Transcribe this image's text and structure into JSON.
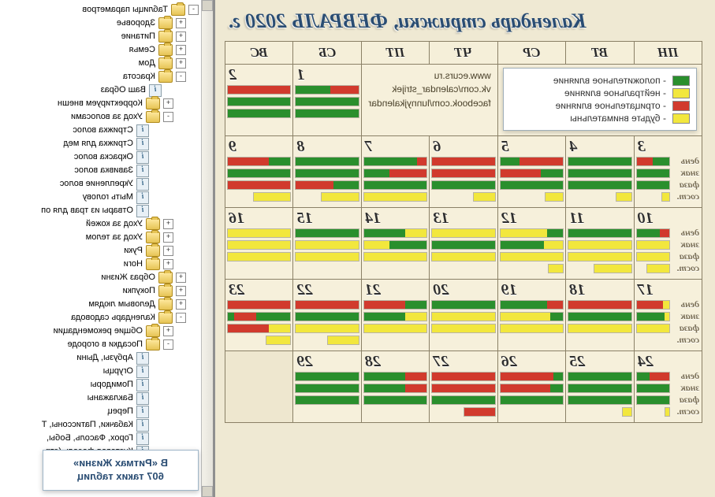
{
  "title": "Календарь стрижки, ФЕВРАЛЬ 2020 г.",
  "sources": [
    "www.ecurs.ru",
    "vk.com/calendar_strijek",
    "facebook.com/lunnyjkalendar"
  ],
  "legend": [
    {
      "color": "#2a8f2d",
      "label": "положительное влияние"
    },
    {
      "color": "#f2e73d",
      "label": "нейтральное влияние"
    },
    {
      "color": "#d13a2d",
      "label": "отрицательное влияние"
    },
    {
      "color": "#f2e73d",
      "label": "будьте внимательны"
    }
  ],
  "weekday_headers": [
    "ПН",
    "ВТ",
    "СР",
    "ЧТ",
    "ПТ",
    "СБ",
    "ВС"
  ],
  "row_labels": [
    "день",
    "знак",
    "фаза",
    "сост."
  ],
  "promo": {
    "line1": "В «Ритмах Жизни»",
    "line2": "607 таких таблиц"
  },
  "colors": {
    "g": "#2a8f2d",
    "r": "#d13a2d",
    "y": "#f2e73d",
    "page_bg": "#efe9d3",
    "cell_bg": "#f6f0db",
    "border": "#8a8066"
  },
  "tree": [
    {
      "depth": 0,
      "exp": "-",
      "kind": "folder",
      "label": "Таблицы параметров"
    },
    {
      "depth": 1,
      "exp": "+",
      "kind": "folder",
      "label": "Здоровье"
    },
    {
      "depth": 1,
      "exp": "+",
      "kind": "folder",
      "label": "Питание"
    },
    {
      "depth": 1,
      "exp": "+",
      "kind": "folder",
      "label": "Семья"
    },
    {
      "depth": 1,
      "exp": "+",
      "kind": "folder",
      "label": "Дом"
    },
    {
      "depth": 1,
      "exp": "-",
      "kind": "folder",
      "label": "Красота"
    },
    {
      "depth": 2,
      "exp": "",
      "kind": "leaf",
      "label": "Ваш Образ"
    },
    {
      "depth": 2,
      "exp": "+",
      "kind": "folder",
      "label": "Корректируем внешн"
    },
    {
      "depth": 2,
      "exp": "-",
      "kind": "folder",
      "label": "Уход за волосами"
    },
    {
      "depth": 3,
      "exp": "",
      "kind": "leaf",
      "label": "Стрижка волос"
    },
    {
      "depth": 3,
      "exp": "",
      "kind": "leaf",
      "label": "Стрижка для мед"
    },
    {
      "depth": 3,
      "exp": "",
      "kind": "leaf",
      "label": "Окраска волос"
    },
    {
      "depth": 3,
      "exp": "",
      "kind": "leaf",
      "label": "Завивка волос"
    },
    {
      "depth": 3,
      "exp": "",
      "kind": "leaf",
      "label": "Укрепление волос"
    },
    {
      "depth": 3,
      "exp": "",
      "kind": "leaf",
      "label": "Мыть голову"
    },
    {
      "depth": 3,
      "exp": "",
      "kind": "leaf",
      "label": "Отвары из трав для оп"
    },
    {
      "depth": 2,
      "exp": "+",
      "kind": "folder",
      "label": "Уход за кожей"
    },
    {
      "depth": 2,
      "exp": "+",
      "kind": "folder",
      "label": "Уход за телом"
    },
    {
      "depth": 2,
      "exp": "+",
      "kind": "folder",
      "label": "Руки"
    },
    {
      "depth": 2,
      "exp": "+",
      "kind": "folder",
      "label": "Ноги"
    },
    {
      "depth": 1,
      "exp": "+",
      "kind": "folder",
      "label": "Образ Жизни"
    },
    {
      "depth": 1,
      "exp": "+",
      "kind": "folder",
      "label": "Покупки"
    },
    {
      "depth": 1,
      "exp": "+",
      "kind": "folder",
      "label": "Деловым людям"
    },
    {
      "depth": 1,
      "exp": "-",
      "kind": "folder",
      "label": "Календарь садовода"
    },
    {
      "depth": 2,
      "exp": "+",
      "kind": "folder",
      "label": "Общие рекомендации"
    },
    {
      "depth": 2,
      "exp": "-",
      "kind": "folder",
      "label": "Посадки в огороде"
    },
    {
      "depth": 3,
      "exp": "",
      "kind": "leaf",
      "label": "Арбузы, Дыни"
    },
    {
      "depth": 3,
      "exp": "",
      "kind": "leaf",
      "label": "Огурцы"
    },
    {
      "depth": 3,
      "exp": "",
      "kind": "leaf",
      "label": "Помидоры"
    },
    {
      "depth": 3,
      "exp": "",
      "kind": "leaf",
      "label": "Баклажаны"
    },
    {
      "depth": 3,
      "exp": "",
      "kind": "leaf",
      "label": "Перец"
    },
    {
      "depth": 3,
      "exp": "",
      "kind": "leaf",
      "label": "Кабачки, Патиссоны, Т"
    },
    {
      "depth": 3,
      "exp": "",
      "kind": "leaf",
      "label": "Горох, Фасоль, Бобы,"
    },
    {
      "depth": 3,
      "exp": "",
      "kind": "leaf",
      "label": "Кустовая фасоль (стр"
    }
  ],
  "weeks": [
    [
      {
        "type": "legend",
        "span": 3
      },
      {
        "type": "sources",
        "span": 2
      },
      {
        "type": "day",
        "n": 1,
        "bars": [
          [
            [
              "r",
              0.45
            ],
            [
              "g",
              0.55
            ]
          ],
          [
            [
              "g",
              1.0
            ]
          ],
          [
            [
              "g",
              1.0
            ]
          ]
        ]
      },
      {
        "type": "day",
        "n": 2,
        "bars": [
          [
            [
              "r",
              1.0
            ]
          ],
          [
            [
              "g",
              1.0
            ]
          ],
          [
            [
              "g",
              1.0
            ]
          ]
        ]
      }
    ],
    [
      {
        "type": "day",
        "n": 3,
        "labels": true,
        "bars": [
          [
            [
              "g",
              0.5
            ],
            [
              "r",
              0.5
            ]
          ],
          [
            [
              "g",
              1.0
            ]
          ],
          [
            [
              "g",
              1.0
            ]
          ],
          [
            [
              "y",
              0.25
            ]
          ]
        ]
      },
      {
        "type": "day",
        "n": 4,
        "bars": [
          [
            [
              "g",
              1.0
            ]
          ],
          [
            [
              "g",
              1.0
            ]
          ],
          [
            [
              "g",
              1.0
            ]
          ],
          [
            [
              "y",
              0.25
            ]
          ]
        ]
      },
      {
        "type": "day",
        "n": 5,
        "bars": [
          [
            [
              "r",
              0.7
            ],
            [
              "g",
              0.3
            ]
          ],
          [
            [
              "g",
              0.35
            ],
            [
              "r",
              0.65
            ]
          ],
          [
            [
              "g",
              1.0
            ]
          ],
          [
            [
              "y",
              0.3
            ]
          ]
        ]
      },
      {
        "type": "day",
        "n": 6,
        "bars": [
          [
            [
              "r",
              1.0
            ]
          ],
          [
            [
              "r",
              1.0
            ]
          ],
          [
            [
              "g",
              1.0
            ]
          ],
          [
            [
              "y",
              0.35
            ]
          ]
        ]
      },
      {
        "type": "day",
        "n": 7,
        "bars": [
          [
            [
              "r",
              0.15
            ],
            [
              "g",
              0.85
            ]
          ],
          [
            [
              "r",
              0.6
            ],
            [
              "g",
              0.4
            ]
          ],
          [
            [
              "g",
              1.0
            ]
          ],
          [
            [
              "y",
              1.0
            ]
          ]
        ]
      },
      {
        "type": "day",
        "n": 8,
        "bars": [
          [
            [
              "g",
              1.0
            ]
          ],
          [
            [
              "g",
              1.0
            ]
          ],
          [
            [
              "g",
              0.4
            ],
            [
              "r",
              0.6
            ]
          ],
          [
            [
              "y",
              0.6
            ]
          ]
        ]
      },
      {
        "type": "day",
        "n": 9,
        "bars": [
          [
            [
              "g",
              0.35
            ],
            [
              "r",
              0.65
            ]
          ],
          [
            [
              "g",
              1.0
            ]
          ],
          [
            [
              "r",
              1.0
            ]
          ],
          [
            [
              "y",
              0.6
            ]
          ]
        ]
      }
    ],
    [
      {
        "type": "day",
        "n": 10,
        "labels": true,
        "bars": [
          [
            [
              "r",
              0.3
            ],
            [
              "g",
              0.7
            ]
          ],
          [
            [
              "y",
              1.0
            ]
          ],
          [
            [
              "y",
              1.0
            ]
          ],
          [
            [
              "y",
              0.7
            ]
          ]
        ]
      },
      {
        "type": "day",
        "n": 11,
        "bars": [
          [
            [
              "g",
              1.0
            ]
          ],
          [
            [
              "y",
              1.0
            ]
          ],
          [
            [
              "y",
              1.0
            ]
          ],
          [
            [
              "y",
              0.6
            ]
          ]
        ]
      },
      {
        "type": "day",
        "n": 12,
        "bars": [
          [
            [
              "g",
              0.25
            ],
            [
              "y",
              0.75
            ]
          ],
          [
            [
              "y",
              0.3
            ],
            [
              "g",
              0.7
            ]
          ],
          [
            [
              "y",
              1.0
            ]
          ],
          [
            [
              "y",
              0.25
            ]
          ]
        ]
      },
      {
        "type": "day",
        "n": 13,
        "bars": [
          [
            [
              "y",
              1.0
            ]
          ],
          [
            [
              "g",
              1.0
            ]
          ],
          [
            [
              "y",
              1.0
            ]
          ]
        ]
      },
      {
        "type": "day",
        "n": 14,
        "bars": [
          [
            [
              "y",
              0.35
            ],
            [
              "g",
              0.65
            ]
          ],
          [
            [
              "g",
              0.6
            ],
            [
              "y",
              0.4
            ]
          ],
          [
            [
              "y",
              1.0
            ]
          ]
        ]
      },
      {
        "type": "day",
        "n": 15,
        "bars": [
          [
            [
              "g",
              1.0
            ]
          ],
          [
            [
              "y",
              1.0
            ]
          ],
          [
            [
              "y",
              1.0
            ]
          ]
        ]
      },
      {
        "type": "day",
        "n": 16,
        "bars": [
          [
            [
              "y",
              1.0
            ]
          ],
          [
            [
              "y",
              1.0
            ]
          ],
          [
            [
              "y",
              1.0
            ]
          ]
        ]
      }
    ],
    [
      {
        "type": "day",
        "n": 17,
        "labels": true,
        "bars": [
          [
            [
              "y",
              0.2
            ],
            [
              "r",
              0.8
            ]
          ],
          [
            [
              "y",
              0.15
            ],
            [
              "g",
              0.85
            ]
          ],
          [
            [
              "y",
              1.0
            ]
          ]
        ]
      },
      {
        "type": "day",
        "n": 18,
        "bars": [
          [
            [
              "r",
              1.0
            ]
          ],
          [
            [
              "g",
              1.0
            ]
          ],
          [
            [
              "y",
              1.0
            ]
          ]
        ]
      },
      {
        "type": "day",
        "n": 19,
        "bars": [
          [
            [
              "r",
              0.25
            ],
            [
              "g",
              0.75
            ]
          ],
          [
            [
              "g",
              0.2
            ],
            [
              "y",
              0.8
            ]
          ],
          [
            [
              "y",
              1.0
            ]
          ]
        ]
      },
      {
        "type": "day",
        "n": 20,
        "bars": [
          [
            [
              "g",
              1.0
            ]
          ],
          [
            [
              "y",
              1.0
            ]
          ],
          [
            [
              "y",
              1.0
            ]
          ]
        ]
      },
      {
        "type": "day",
        "n": 21,
        "bars": [
          [
            [
              "g",
              0.35
            ],
            [
              "r",
              0.65
            ]
          ],
          [
            [
              "y",
              0.35
            ],
            [
              "g",
              0.65
            ]
          ],
          [
            [
              "y",
              1.0
            ]
          ]
        ]
      },
      {
        "type": "day",
        "n": 22,
        "bars": [
          [
            [
              "r",
              1.0
            ]
          ],
          [
            [
              "g",
              1.0
            ]
          ],
          [
            [
              "y",
              1.0
            ]
          ],
          [
            [
              "y",
              0.5
            ]
          ]
        ]
      },
      {
        "type": "day",
        "n": 23,
        "bars": [
          [
            [
              "r",
              1.0
            ]
          ],
          [
            [
              "g",
              0.55
            ],
            [
              "r",
              0.35
            ],
            [
              "g",
              0.1
            ]
          ],
          [
            [
              "y",
              0.35
            ],
            [
              "r",
              0.65
            ]
          ],
          [
            [
              "y",
              0.4
            ]
          ]
        ]
      }
    ],
    [
      {
        "type": "day",
        "n": 24,
        "labels": true,
        "bars": [
          [
            [
              "r",
              0.6
            ],
            [
              "g",
              0.4
            ]
          ],
          [
            [
              "g",
              1.0
            ]
          ],
          [
            [
              "g",
              1.0
            ]
          ],
          [
            [
              "y",
              0.15
            ]
          ]
        ]
      },
      {
        "type": "day",
        "n": 25,
        "bars": [
          [
            [
              "g",
              1.0
            ]
          ],
          [
            [
              "g",
              1.0
            ]
          ],
          [
            [
              "g",
              1.0
            ]
          ],
          [
            [
              "y",
              0.15
            ]
          ]
        ]
      },
      {
        "type": "day",
        "n": 26,
        "bars": [
          [
            [
              "g",
              0.15
            ],
            [
              "r",
              0.85
            ]
          ],
          [
            [
              "g",
              0.2
            ],
            [
              "r",
              0.8
            ]
          ],
          [
            [
              "g",
              1.0
            ]
          ]
        ]
      },
      {
        "type": "day",
        "n": 27,
        "bars": [
          [
            [
              "r",
              1.0
            ]
          ],
          [
            [
              "r",
              1.0
            ]
          ],
          [
            [
              "g",
              1.0
            ]
          ],
          [
            [
              "r",
              0.5
            ]
          ]
        ]
      },
      {
        "type": "day",
        "n": 28,
        "bars": [
          [
            [
              "r",
              0.35
            ],
            [
              "g",
              0.65
            ]
          ],
          [
            [
              "r",
              0.35
            ],
            [
              "g",
              0.65
            ]
          ],
          [
            [
              "g",
              1.0
            ]
          ]
        ]
      },
      {
        "type": "day",
        "n": 29,
        "bars": [
          [
            [
              "g",
              1.0
            ]
          ],
          [
            [
              "g",
              1.0
            ]
          ],
          [
            [
              "g",
              1.0
            ]
          ]
        ]
      },
      {
        "type": "blank"
      }
    ]
  ]
}
